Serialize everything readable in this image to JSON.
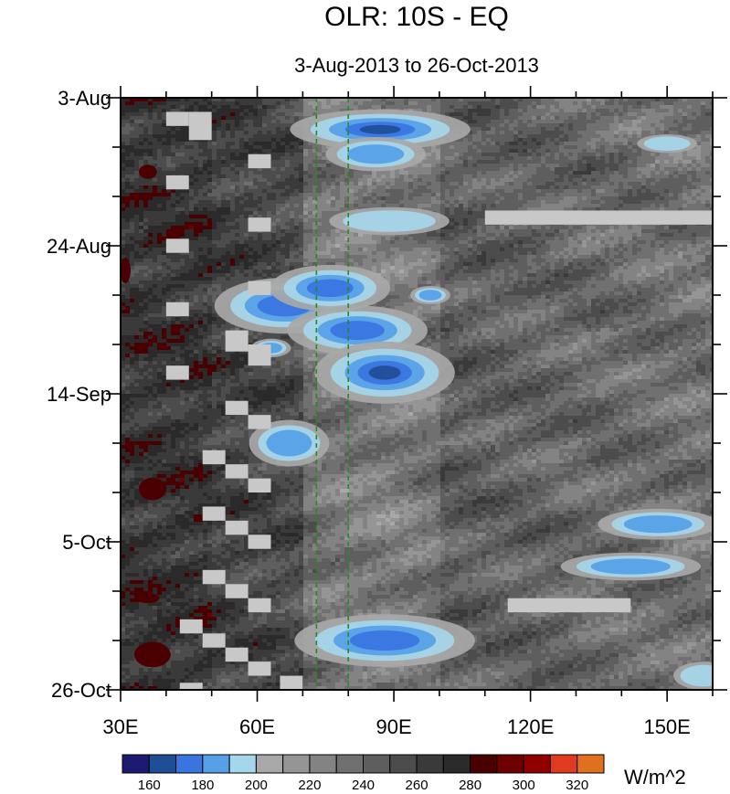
{
  "chart_data": {
    "type": "heatmap",
    "title": "OLR: 10S - EQ",
    "subtitle": "3-Aug-2013 to 26-Oct-2013",
    "x_axis": {
      "range": [
        30,
        160
      ],
      "ticks": [
        30,
        60,
        90,
        120,
        150
      ],
      "tick_labels": [
        "30E",
        "60E",
        "90E",
        "120E",
        "150E"
      ]
    },
    "y_axis": {
      "range": [
        "3-Aug-2013",
        "26-Oct-2013"
      ],
      "tick_labels": [
        "3-Aug",
        "24-Aug",
        "14-Sep",
        "5-Oct",
        "26-Oct"
      ],
      "tick_days": [
        0,
        21,
        42,
        63,
        84
      ]
    },
    "reference_lines_lon": [
      73,
      80
    ],
    "reference_line_color": "#228b22",
    "colorbar": {
      "levels": [
        "160",
        "180",
        "200",
        "220",
        "240",
        "260",
        "280",
        "300",
        "320"
      ],
      "label_positions": [
        1,
        3,
        5,
        7,
        9,
        11,
        13,
        15,
        17
      ],
      "colors": [
        "#1b1b72",
        "#1f4e96",
        "#3a74e0",
        "#56a0e8",
        "#a6d6ec",
        "#a8a8a8",
        "#959595",
        "#838383",
        "#707070",
        "#5e5e5e",
        "#4c4c4c",
        "#3a3a3a",
        "#2a2a2a",
        "#4a0000",
        "#6e0000",
        "#900000",
        "#e03a20",
        "#e07020"
      ],
      "units": "W/m^2"
    },
    "convective_events": [
      {
        "lon": 87,
        "day": 4.5,
        "rlon": 9,
        "rday": 1.3,
        "level": 165
      },
      {
        "lon": 86,
        "day": 8,
        "rlon": 5,
        "rday": 1.1,
        "level": 185
      },
      {
        "lon": 89,
        "day": 17.5,
        "rlon": 6,
        "rday": 0.9,
        "level": 190
      },
      {
        "lon": 66,
        "day": 29.5,
        "rlon": 7,
        "rday": 1.8,
        "level": 175
      },
      {
        "lon": 76,
        "day": 27,
        "rlon": 6,
        "rday": 1.5,
        "level": 170
      },
      {
        "lon": 82,
        "day": 33,
        "rlon": 7,
        "rday": 1.6,
        "level": 170
      },
      {
        "lon": 88,
        "day": 39,
        "rlon": 7,
        "rday": 2.0,
        "level": 165
      },
      {
        "lon": 67,
        "day": 49,
        "rlon": 4,
        "rday": 1.5,
        "level": 185
      },
      {
        "lon": 88,
        "day": 77,
        "rlon": 9,
        "rday": 1.7,
        "level": 170
      },
      {
        "lon": 148,
        "day": 60.5,
        "rlon": 6,
        "rday": 1.0,
        "level": 180
      },
      {
        "lon": 142,
        "day": 66.5,
        "rlon": 7,
        "rday": 0.9,
        "level": 185
      },
      {
        "lon": 158,
        "day": 82,
        "rlon": 3,
        "rday": 0.9,
        "level": 190
      },
      {
        "lon": 150,
        "day": 6.5,
        "rlon": 3,
        "rday": 0.6,
        "level": 190
      },
      {
        "lon": 63,
        "day": 35.5,
        "rlon": 2,
        "rday": 0.6,
        "level": 185
      },
      {
        "lon": 98,
        "day": 28,
        "rlon": 2,
        "rday": 0.6,
        "level": 185
      }
    ],
    "dry_events": [
      {
        "lon": 36,
        "day": 10.5,
        "rlon": 2,
        "rday": 1.0
      },
      {
        "lon": 31,
        "day": 24.5,
        "rlon": 1.2,
        "rday": 1.8
      },
      {
        "lon": 37,
        "day": 55.5,
        "rlon": 3,
        "rday": 1.6
      },
      {
        "lon": 37,
        "day": 79,
        "rlon": 4,
        "rday": 1.8
      },
      {
        "lon": 36,
        "day": 71,
        "rlon": 2.5,
        "rday": 0.7
      }
    ],
    "missing_blocks": [
      {
        "lon0": 110,
        "lon1": 160,
        "day0": 16,
        "day1": 18
      },
      {
        "lon0": 115,
        "lon1": 142,
        "day0": 71,
        "day1": 73
      },
      {
        "lon0": 40,
        "lon1": 45,
        "day0": 2,
        "day1": 4
      },
      {
        "lon0": 45,
        "lon1": 50,
        "day0": 2,
        "day1": 6
      },
      {
        "lon0": 40,
        "lon1": 45,
        "day0": 11,
        "day1": 13
      },
      {
        "lon0": 58,
        "lon1": 63,
        "day0": 8,
        "day1": 10
      },
      {
        "lon0": 58,
        "lon1": 63,
        "day0": 17,
        "day1": 19
      },
      {
        "lon0": 40,
        "lon1": 45,
        "day0": 20,
        "day1": 22
      },
      {
        "lon0": 58,
        "lon1": 63,
        "day0": 26,
        "day1": 28
      },
      {
        "lon0": 40,
        "lon1": 45,
        "day0": 29,
        "day1": 31
      },
      {
        "lon0": 53,
        "lon1": 58,
        "day0": 33,
        "day1": 36
      },
      {
        "lon0": 58,
        "lon1": 63,
        "day0": 35,
        "day1": 38
      },
      {
        "lon0": 40,
        "lon1": 45,
        "day0": 38,
        "day1": 40
      },
      {
        "lon0": 53,
        "lon1": 58,
        "day0": 43,
        "day1": 45
      },
      {
        "lon0": 58,
        "lon1": 63,
        "day0": 45,
        "day1": 47
      },
      {
        "lon0": 48,
        "lon1": 53,
        "day0": 50,
        "day1": 52
      },
      {
        "lon0": 53,
        "lon1": 58,
        "day0": 52,
        "day1": 54
      },
      {
        "lon0": 58,
        "lon1": 63,
        "day0": 54,
        "day1": 56
      },
      {
        "lon0": 48,
        "lon1": 53,
        "day0": 58,
        "day1": 60
      },
      {
        "lon0": 53,
        "lon1": 58,
        "day0": 60,
        "day1": 62
      },
      {
        "lon0": 58,
        "lon1": 63,
        "day0": 62,
        "day1": 64
      },
      {
        "lon0": 48,
        "lon1": 53,
        "day0": 67,
        "day1": 69
      },
      {
        "lon0": 53,
        "lon1": 58,
        "day0": 69,
        "day1": 71
      },
      {
        "lon0": 58,
        "lon1": 63,
        "day0": 71,
        "day1": 73
      },
      {
        "lon0": 43,
        "lon1": 48,
        "day0": 74,
        "day1": 76
      },
      {
        "lon0": 48,
        "lon1": 53,
        "day0": 76,
        "day1": 78
      },
      {
        "lon0": 53,
        "lon1": 58,
        "day0": 78,
        "day1": 80
      },
      {
        "lon0": 58,
        "lon1": 63,
        "day0": 80,
        "day1": 82
      },
      {
        "lon0": 65,
        "lon1": 70,
        "day0": 82,
        "day1": 84
      },
      {
        "lon0": 43,
        "lon1": 48,
        "day0": 83,
        "day1": 84
      }
    ]
  }
}
